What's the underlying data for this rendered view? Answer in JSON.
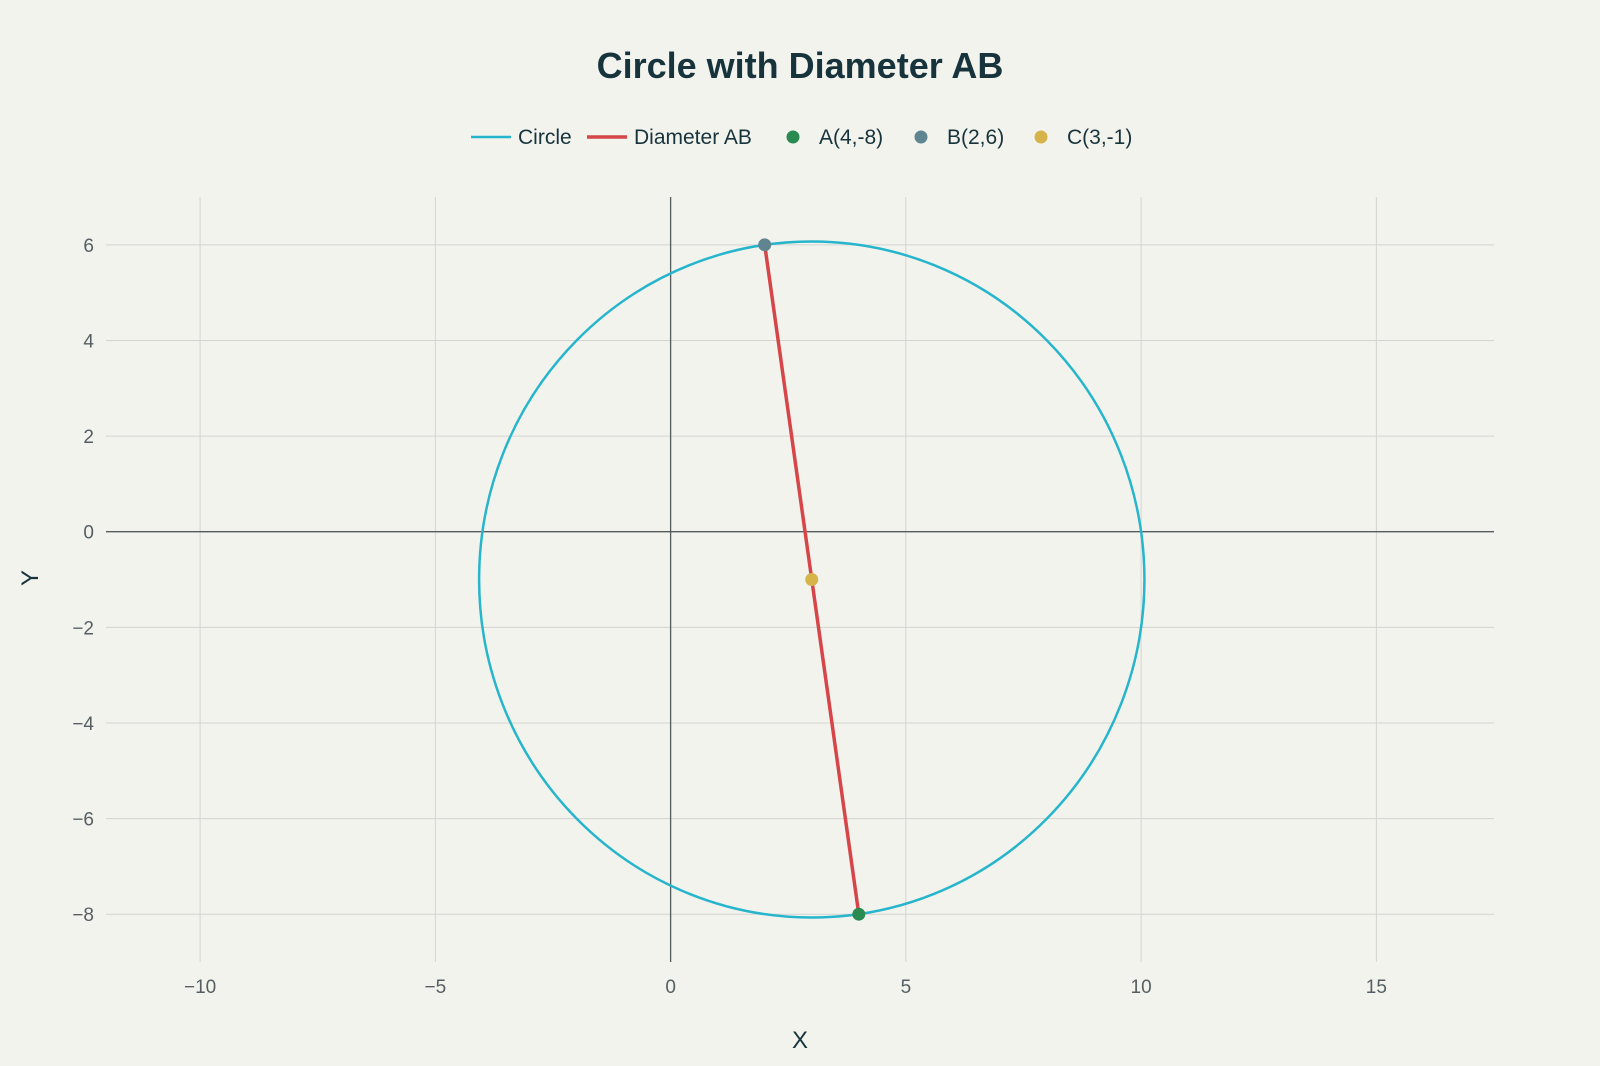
{
  "chart_data": {
    "type": "scatter",
    "title": "Circle with Diameter AB",
    "xlabel": "X",
    "ylabel": "Y",
    "xlim": [
      -12,
      17.5
    ],
    "ylim": [
      -9,
      7
    ],
    "x_ticks": [
      -10,
      -5,
      0,
      5,
      10,
      15
    ],
    "y_ticks": [
      6,
      4,
      2,
      0,
      -2,
      -4,
      -6,
      -8
    ],
    "grid": true,
    "legend_position": "top-center",
    "series": [
      {
        "name": "Circle",
        "kind": "line",
        "color": "#27b5cc",
        "center": [
          3,
          -1
        ],
        "radius": 7.07
      },
      {
        "name": "Diameter AB",
        "kind": "line",
        "color": "#d64548",
        "x": [
          4,
          2
        ],
        "y": [
          -8,
          6
        ]
      },
      {
        "name": "A(4,-8)",
        "kind": "point",
        "color": "#2a8a52",
        "x": [
          4
        ],
        "y": [
          -8
        ]
      },
      {
        "name": "B(2,6)",
        "kind": "point",
        "color": "#5f8590",
        "x": [
          2
        ],
        "y": [
          6
        ]
      },
      {
        "name": "C(3,-1)",
        "kind": "point",
        "color": "#d6b44a",
        "x": [
          3
        ],
        "y": [
          -1
        ]
      }
    ]
  }
}
